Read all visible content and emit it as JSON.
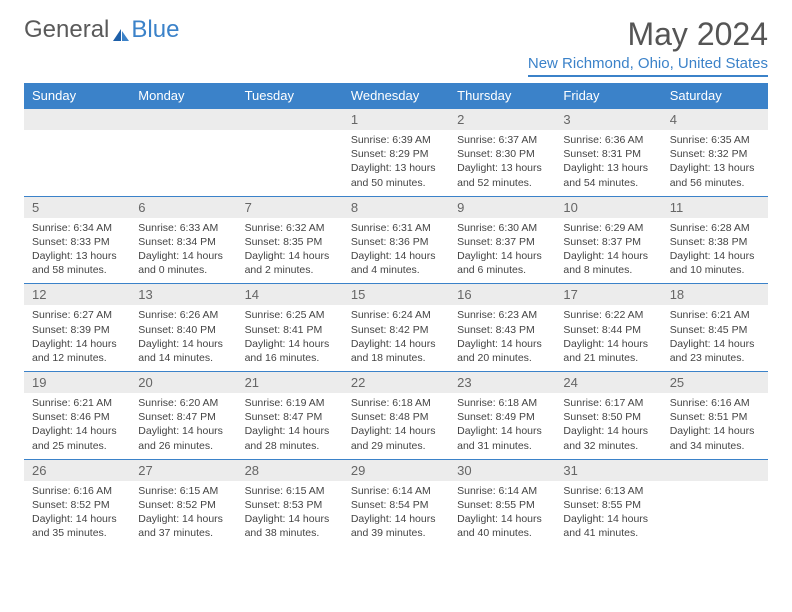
{
  "logo": {
    "text1": "General",
    "text2": "Blue"
  },
  "title": "May 2024",
  "location": "New Richmond, Ohio, United States",
  "colors": {
    "header_bg": "#3b82c9",
    "header_fg": "#ffffff",
    "daynum_bg": "#ececec",
    "border": "#3b82c9",
    "logo_gray": "#5a5a5a",
    "logo_blue": "#3b82c9",
    "body_text": "#444444"
  },
  "weekdays": [
    "Sunday",
    "Monday",
    "Tuesday",
    "Wednesday",
    "Thursday",
    "Friday",
    "Saturday"
  ],
  "weeks": [
    [
      {
        "n": "",
        "sr": "",
        "ss": "",
        "dl": ""
      },
      {
        "n": "",
        "sr": "",
        "ss": "",
        "dl": ""
      },
      {
        "n": "",
        "sr": "",
        "ss": "",
        "dl": ""
      },
      {
        "n": "1",
        "sr": "Sunrise: 6:39 AM",
        "ss": "Sunset: 8:29 PM",
        "dl": "Daylight: 13 hours and 50 minutes."
      },
      {
        "n": "2",
        "sr": "Sunrise: 6:37 AM",
        "ss": "Sunset: 8:30 PM",
        "dl": "Daylight: 13 hours and 52 minutes."
      },
      {
        "n": "3",
        "sr": "Sunrise: 6:36 AM",
        "ss": "Sunset: 8:31 PM",
        "dl": "Daylight: 13 hours and 54 minutes."
      },
      {
        "n": "4",
        "sr": "Sunrise: 6:35 AM",
        "ss": "Sunset: 8:32 PM",
        "dl": "Daylight: 13 hours and 56 minutes."
      }
    ],
    [
      {
        "n": "5",
        "sr": "Sunrise: 6:34 AM",
        "ss": "Sunset: 8:33 PM",
        "dl": "Daylight: 13 hours and 58 minutes."
      },
      {
        "n": "6",
        "sr": "Sunrise: 6:33 AM",
        "ss": "Sunset: 8:34 PM",
        "dl": "Daylight: 14 hours and 0 minutes."
      },
      {
        "n": "7",
        "sr": "Sunrise: 6:32 AM",
        "ss": "Sunset: 8:35 PM",
        "dl": "Daylight: 14 hours and 2 minutes."
      },
      {
        "n": "8",
        "sr": "Sunrise: 6:31 AM",
        "ss": "Sunset: 8:36 PM",
        "dl": "Daylight: 14 hours and 4 minutes."
      },
      {
        "n": "9",
        "sr": "Sunrise: 6:30 AM",
        "ss": "Sunset: 8:37 PM",
        "dl": "Daylight: 14 hours and 6 minutes."
      },
      {
        "n": "10",
        "sr": "Sunrise: 6:29 AM",
        "ss": "Sunset: 8:37 PM",
        "dl": "Daylight: 14 hours and 8 minutes."
      },
      {
        "n": "11",
        "sr": "Sunrise: 6:28 AM",
        "ss": "Sunset: 8:38 PM",
        "dl": "Daylight: 14 hours and 10 minutes."
      }
    ],
    [
      {
        "n": "12",
        "sr": "Sunrise: 6:27 AM",
        "ss": "Sunset: 8:39 PM",
        "dl": "Daylight: 14 hours and 12 minutes."
      },
      {
        "n": "13",
        "sr": "Sunrise: 6:26 AM",
        "ss": "Sunset: 8:40 PM",
        "dl": "Daylight: 14 hours and 14 minutes."
      },
      {
        "n": "14",
        "sr": "Sunrise: 6:25 AM",
        "ss": "Sunset: 8:41 PM",
        "dl": "Daylight: 14 hours and 16 minutes."
      },
      {
        "n": "15",
        "sr": "Sunrise: 6:24 AM",
        "ss": "Sunset: 8:42 PM",
        "dl": "Daylight: 14 hours and 18 minutes."
      },
      {
        "n": "16",
        "sr": "Sunrise: 6:23 AM",
        "ss": "Sunset: 8:43 PM",
        "dl": "Daylight: 14 hours and 20 minutes."
      },
      {
        "n": "17",
        "sr": "Sunrise: 6:22 AM",
        "ss": "Sunset: 8:44 PM",
        "dl": "Daylight: 14 hours and 21 minutes."
      },
      {
        "n": "18",
        "sr": "Sunrise: 6:21 AM",
        "ss": "Sunset: 8:45 PM",
        "dl": "Daylight: 14 hours and 23 minutes."
      }
    ],
    [
      {
        "n": "19",
        "sr": "Sunrise: 6:21 AM",
        "ss": "Sunset: 8:46 PM",
        "dl": "Daylight: 14 hours and 25 minutes."
      },
      {
        "n": "20",
        "sr": "Sunrise: 6:20 AM",
        "ss": "Sunset: 8:47 PM",
        "dl": "Daylight: 14 hours and 26 minutes."
      },
      {
        "n": "21",
        "sr": "Sunrise: 6:19 AM",
        "ss": "Sunset: 8:47 PM",
        "dl": "Daylight: 14 hours and 28 minutes."
      },
      {
        "n": "22",
        "sr": "Sunrise: 6:18 AM",
        "ss": "Sunset: 8:48 PM",
        "dl": "Daylight: 14 hours and 29 minutes."
      },
      {
        "n": "23",
        "sr": "Sunrise: 6:18 AM",
        "ss": "Sunset: 8:49 PM",
        "dl": "Daylight: 14 hours and 31 minutes."
      },
      {
        "n": "24",
        "sr": "Sunrise: 6:17 AM",
        "ss": "Sunset: 8:50 PM",
        "dl": "Daylight: 14 hours and 32 minutes."
      },
      {
        "n": "25",
        "sr": "Sunrise: 6:16 AM",
        "ss": "Sunset: 8:51 PM",
        "dl": "Daylight: 14 hours and 34 minutes."
      }
    ],
    [
      {
        "n": "26",
        "sr": "Sunrise: 6:16 AM",
        "ss": "Sunset: 8:52 PM",
        "dl": "Daylight: 14 hours and 35 minutes."
      },
      {
        "n": "27",
        "sr": "Sunrise: 6:15 AM",
        "ss": "Sunset: 8:52 PM",
        "dl": "Daylight: 14 hours and 37 minutes."
      },
      {
        "n": "28",
        "sr": "Sunrise: 6:15 AM",
        "ss": "Sunset: 8:53 PM",
        "dl": "Daylight: 14 hours and 38 minutes."
      },
      {
        "n": "29",
        "sr": "Sunrise: 6:14 AM",
        "ss": "Sunset: 8:54 PM",
        "dl": "Daylight: 14 hours and 39 minutes."
      },
      {
        "n": "30",
        "sr": "Sunrise: 6:14 AM",
        "ss": "Sunset: 8:55 PM",
        "dl": "Daylight: 14 hours and 40 minutes."
      },
      {
        "n": "31",
        "sr": "Sunrise: 6:13 AM",
        "ss": "Sunset: 8:55 PM",
        "dl": "Daylight: 14 hours and 41 minutes."
      },
      {
        "n": "",
        "sr": "",
        "ss": "",
        "dl": ""
      }
    ]
  ]
}
